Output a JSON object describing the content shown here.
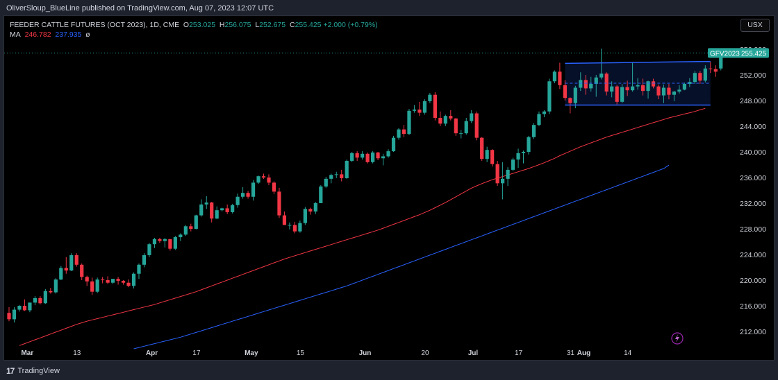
{
  "header": {
    "text": "OliverSloup_BlueLine published on TradingView.com, Aug 07, 2023 12:07 UTC"
  },
  "legend": {
    "symbol": "FEEDER CATTLE FUTURES (OCT 2023), 1D, CME",
    "o_label": "O",
    "o_value": "253.025",
    "h_label": "H",
    "h_value": "256.075",
    "l_label": "L",
    "l_value": "252.675",
    "c_label": "C",
    "c_value": "255.425",
    "change": "+2.000 (+0.79%)",
    "ma_label": "MA",
    "ma1_value": "246.782",
    "ma2_value": "237.935",
    "ma_extra": "ø"
  },
  "currency_button": "USX",
  "footer": {
    "brand": "TradingView"
  },
  "price_tag": {
    "symbol": "GFV2023",
    "price": "255.425"
  },
  "colors": {
    "up": "#26a69a",
    "down": "#f23645",
    "ma1": "#f23645",
    "ma2": "#2962ff",
    "channel": "#2962ff",
    "background": "#000000",
    "axis_text": "#d1d4dc"
  },
  "chart_data": {
    "type": "candlestick",
    "title": "FEEDER CATTLE FUTURES (OCT 2023), 1D, CME",
    "ylim": [
      208,
      257.5
    ],
    "y_ticks": [
      212,
      216,
      220,
      224,
      228,
      232,
      236,
      240,
      244,
      248,
      252,
      256
    ],
    "y_tick_labels": [
      "212.000",
      "216.000",
      "220.000",
      "224.000",
      "228.000",
      "232.000",
      "236.000",
      "240.000",
      "244.000",
      "248.000",
      "252.000",
      "256.000"
    ],
    "x_ticks": [
      {
        "index": 3,
        "label": "Mar"
      },
      {
        "index": 13,
        "label": "13"
      },
      {
        "index": 27,
        "label": "Apr"
      },
      {
        "index": 36,
        "label": "17"
      },
      {
        "index": 46,
        "label": "May"
      },
      {
        "index": 56,
        "label": "15"
      },
      {
        "index": 68,
        "label": "Jun"
      },
      {
        "index": 80,
        "label": "20"
      },
      {
        "index": 89,
        "label": "Jul"
      },
      {
        "index": 98,
        "label": "17"
      },
      {
        "index": 108,
        "label": "31"
      },
      {
        "index": 110,
        "label": "Aug"
      },
      {
        "index": 119,
        "label": "14"
      }
    ],
    "candles": [
      [
        214.9,
        215.8,
        213.6,
        213.9
      ],
      [
        213.9,
        215.8,
        213.4,
        215.4
      ],
      [
        215.4,
        216.1,
        215.1,
        216.0
      ],
      [
        216.0,
        217.0,
        215.2,
        215.3
      ],
      [
        215.3,
        216.5,
        215.0,
        216.5
      ],
      [
        216.5,
        217.5,
        216.1,
        217.2
      ],
      [
        217.2,
        217.5,
        216.2,
        216.4
      ],
      [
        216.4,
        218.6,
        216.3,
        218.3
      ],
      [
        218.3,
        218.8,
        217.9,
        218.1
      ],
      [
        218.1,
        220.3,
        217.9,
        220.1
      ],
      [
        220.1,
        222.2,
        220.0,
        221.9
      ],
      [
        221.9,
        223.6,
        221.0,
        221.5
      ],
      [
        221.5,
        224.2,
        221.4,
        223.9
      ],
      [
        223.9,
        224.2,
        222.1,
        222.4
      ],
      [
        222.4,
        222.6,
        220.0,
        220.5
      ],
      [
        220.5,
        220.7,
        219.1,
        219.8
      ],
      [
        219.8,
        220.4,
        217.7,
        218.2
      ],
      [
        218.2,
        220.4,
        218.0,
        220.1
      ],
      [
        220.1,
        220.5,
        219.5,
        220.0
      ],
      [
        220.0,
        220.6,
        219.4,
        219.6
      ],
      [
        219.6,
        220.2,
        219.4,
        220.2
      ],
      [
        220.2,
        220.5,
        219.3,
        219.9
      ],
      [
        219.9,
        220.0,
        219.3,
        219.6
      ],
      [
        219.6,
        220.1,
        218.9,
        219.1
      ],
      [
        219.1,
        221.2,
        218.7,
        221.0
      ],
      [
        221.0,
        222.6,
        220.2,
        222.4
      ],
      [
        222.4,
        224.2,
        222.0,
        223.9
      ],
      [
        223.9,
        225.8,
        223.6,
        225.6
      ],
      [
        225.6,
        226.6,
        225.0,
        226.4
      ],
      [
        226.4,
        226.6,
        225.8,
        226.1
      ],
      [
        226.1,
        226.6,
        225.1,
        226.4
      ],
      [
        226.4,
        226.4,
        224.6,
        224.9
      ],
      [
        224.9,
        226.9,
        224.7,
        226.7
      ],
      [
        226.7,
        227.3,
        226.1,
        227.1
      ],
      [
        227.1,
        228.6,
        226.9,
        228.4
      ],
      [
        228.4,
        228.8,
        227.6,
        228.0
      ],
      [
        228.0,
        230.2,
        227.9,
        230.1
      ],
      [
        230.1,
        232.6,
        229.9,
        231.8
      ],
      [
        231.8,
        233.1,
        231.1,
        232.1
      ],
      [
        232.1,
        232.2,
        229.0,
        229.6
      ],
      [
        229.6,
        231.5,
        229.5,
        230.9
      ],
      [
        230.9,
        231.3,
        230.7,
        231.2
      ],
      [
        231.2,
        231.8,
        230.3,
        230.6
      ],
      [
        230.6,
        231.9,
        230.4,
        231.7
      ],
      [
        231.7,
        233.5,
        231.3,
        233.0
      ],
      [
        233.0,
        234.5,
        232.7,
        233.6
      ],
      [
        233.6,
        233.9,
        232.7,
        233.0
      ],
      [
        233.0,
        235.6,
        232.4,
        235.2
      ],
      [
        235.2,
        236.3,
        235.0,
        236.2
      ],
      [
        236.2,
        236.6,
        235.8,
        236.0
      ],
      [
        236.0,
        236.5,
        234.8,
        235.2
      ],
      [
        235.2,
        235.4,
        233.4,
        233.8
      ],
      [
        233.8,
        234.4,
        229.7,
        230.1
      ],
      [
        230.1,
        230.7,
        228.6,
        228.6
      ],
      [
        228.6,
        229.0,
        227.9,
        228.6
      ],
      [
        228.6,
        229.1,
        227.3,
        227.6
      ],
      [
        227.6,
        229.3,
        227.4,
        228.9
      ],
      [
        228.9,
        231.4,
        228.6,
        231.1
      ],
      [
        231.1,
        231.3,
        230.2,
        230.7
      ],
      [
        230.7,
        232.2,
        230.3,
        232.0
      ],
      [
        232.0,
        234.8,
        232.0,
        234.6
      ],
      [
        234.6,
        236.1,
        234.4,
        235.8
      ],
      [
        235.8,
        236.6,
        235.1,
        236.4
      ],
      [
        236.4,
        236.9,
        235.9,
        236.5
      ],
      [
        236.5,
        237.2,
        235.4,
        235.9
      ],
      [
        235.9,
        238.8,
        235.8,
        238.6
      ],
      [
        238.6,
        240.0,
        238.4,
        239.8
      ],
      [
        239.8,
        240.1,
        238.6,
        239.1
      ],
      [
        239.1,
        240.1,
        238.8,
        239.7
      ],
      [
        239.7,
        239.9,
        238.2,
        238.4
      ],
      [
        238.4,
        240.1,
        238.2,
        239.9
      ],
      [
        239.9,
        240.0,
        238.7,
        239.0
      ],
      [
        239.0,
        239.7,
        237.9,
        239.3
      ],
      [
        239.3,
        240.4,
        239.1,
        240.1
      ],
      [
        240.1,
        242.5,
        240.0,
        242.2
      ],
      [
        242.2,
        243.7,
        241.9,
        243.5
      ],
      [
        243.5,
        244.2,
        242.3,
        242.8
      ],
      [
        242.8,
        246.7,
        242.6,
        246.4
      ],
      [
        246.4,
        247.3,
        246.1,
        246.6
      ],
      [
        246.6,
        247.8,
        245.6,
        246.1
      ],
      [
        246.1,
        248.2,
        245.8,
        247.9
      ],
      [
        247.9,
        249.2,
        247.6,
        248.9
      ],
      [
        248.9,
        249.3,
        244.9,
        245.3
      ],
      [
        245.3,
        246.3,
        244.0,
        244.4
      ],
      [
        244.4,
        245.8,
        244.0,
        245.6
      ],
      [
        245.6,
        246.5,
        244.9,
        245.2
      ],
      [
        245.2,
        245.3,
        242.5,
        242.9
      ],
      [
        242.9,
        243.4,
        242.1,
        242.9
      ],
      [
        242.9,
        245.3,
        242.7,
        244.8
      ],
      [
        244.8,
        246.5,
        244.5,
        246.0
      ],
      [
        246.0,
        246.3,
        241.8,
        242.2
      ],
      [
        242.2,
        242.3,
        238.6,
        238.9
      ],
      [
        238.9,
        240.8,
        238.4,
        240.3
      ],
      [
        240.3,
        240.4,
        237.7,
        238.1
      ],
      [
        238.1,
        238.6,
        234.7,
        235.1
      ],
      [
        235.1,
        238.4,
        232.6,
        235.8
      ],
      [
        235.8,
        237.6,
        234.7,
        237.2
      ],
      [
        237.2,
        239.1,
        237.0,
        238.8
      ],
      [
        238.8,
        240.5,
        237.5,
        239.8
      ],
      [
        239.8,
        240.2,
        238.2,
        240.0
      ],
      [
        240.0,
        242.5,
        239.6,
        242.3
      ],
      [
        242.3,
        244.5,
        242.0,
        244.2
      ],
      [
        244.2,
        246.3,
        244.0,
        245.9
      ],
      [
        245.9,
        246.5,
        245.4,
        246.3
      ],
      [
        246.3,
        251.4,
        245.9,
        251.0
      ],
      [
        251.0,
        252.7,
        250.7,
        252.5
      ],
      [
        252.5,
        253.9,
        249.8,
        250.4
      ],
      [
        250.4,
        251.2,
        248.0,
        248.4
      ],
      [
        248.4,
        248.5,
        246.0,
        247.6
      ],
      [
        247.6,
        250.3,
        246.8,
        250.0
      ],
      [
        250.0,
        252.4,
        249.5,
        251.2
      ],
      [
        251.2,
        252.0,
        248.9,
        249.9
      ],
      [
        249.9,
        251.7,
        249.4,
        250.6
      ],
      [
        250.6,
        252.0,
        248.6,
        251.6
      ],
      [
        251.6,
        256.1,
        251.3,
        252.2
      ],
      [
        252.2,
        252.4,
        248.8,
        249.4
      ],
      [
        249.4,
        251.0,
        248.5,
        250.2
      ],
      [
        250.2,
        250.4,
        247.4,
        247.8
      ],
      [
        247.8,
        250.6,
        247.6,
        250.1
      ],
      [
        250.1,
        251.1,
        248.7,
        249.6
      ],
      [
        249.6,
        254.0,
        249.4,
        250.2
      ],
      [
        250.2,
        251.5,
        249.7,
        250.4
      ],
      [
        250.4,
        251.4,
        248.8,
        249.5
      ],
      [
        249.5,
        251.1,
        248.3,
        251.0
      ],
      [
        251.0,
        251.4,
        249.9,
        250.2
      ],
      [
        250.2,
        250.5,
        248.2,
        248.8
      ],
      [
        248.8,
        250.5,
        247.6,
        250.0
      ],
      [
        250.0,
        250.6,
        248.2,
        248.9
      ],
      [
        248.9,
        249.5,
        247.9,
        249.4
      ],
      [
        249.4,
        250.4,
        249.1,
        249.7
      ],
      [
        249.7,
        250.8,
        249.6,
        250.6
      ],
      [
        250.6,
        251.5,
        250.1,
        250.9
      ],
      [
        250.9,
        252.6,
        250.6,
        252.3
      ],
      [
        252.3,
        252.6,
        250.6,
        251.1
      ],
      [
        251.1,
        253.5,
        250.8,
        253.0
      ],
      [
        253.0,
        254.0,
        252.3,
        252.9
      ],
      [
        252.9,
        253.5,
        251.7,
        252.5
      ],
      [
        253.0,
        256.1,
        252.7,
        255.4
      ]
    ],
    "series": [
      {
        "name": "MA",
        "color": "#f23645",
        "start_index": 2,
        "values": [
          209.8,
          210.1,
          210.4,
          210.7,
          211.0,
          211.3,
          211.6,
          211.9,
          212.2,
          212.5,
          212.8,
          213.1,
          213.35,
          213.6,
          213.8,
          214.0,
          214.2,
          214.4,
          214.6,
          214.8,
          215.0,
          215.2,
          215.4,
          215.6,
          215.8,
          216.0,
          216.2,
          216.45,
          216.7,
          216.95,
          217.2,
          217.45,
          217.7,
          217.95,
          218.2,
          218.5,
          218.8,
          219.1,
          219.4,
          219.7,
          220.0,
          220.3,
          220.6,
          220.9,
          221.2,
          221.5,
          221.8,
          222.1,
          222.4,
          222.7,
          223.0,
          223.3,
          223.55,
          223.8,
          224.05,
          224.3,
          224.55,
          224.8,
          225.05,
          225.3,
          225.55,
          225.8,
          226.05,
          226.3,
          226.55,
          226.8,
          227.05,
          227.3,
          227.55,
          227.8,
          228.1,
          228.4,
          228.7,
          229.0,
          229.3,
          229.6,
          229.9,
          230.2,
          230.55,
          230.9,
          231.3,
          231.7,
          232.1,
          232.55,
          233.0,
          233.45,
          233.9,
          234.35,
          234.7,
          235.05,
          235.35,
          235.65,
          235.9,
          236.15,
          236.4,
          236.65,
          236.9,
          237.15,
          237.4,
          237.7,
          238.0,
          238.3,
          238.65,
          239.0,
          239.4,
          239.75,
          240.1,
          240.45,
          240.8,
          241.1,
          241.4,
          241.7,
          242.0,
          242.3,
          242.55,
          242.8,
          243.05,
          243.3,
          243.55,
          243.8,
          244.05,
          244.3,
          244.55,
          244.8,
          245.05,
          245.3,
          245.5,
          245.7,
          245.9,
          246.1,
          246.3,
          246.55,
          246.78
        ]
      },
      {
        "name": "MA",
        "color": "#2962ff",
        "start_index": 24,
        "values": [
          209.3,
          209.5,
          209.7,
          209.9,
          210.1,
          210.3,
          210.5,
          210.7,
          210.9,
          211.1,
          211.35,
          211.6,
          211.85,
          212.1,
          212.35,
          212.6,
          212.85,
          213.1,
          213.35,
          213.6,
          213.85,
          214.1,
          214.35,
          214.6,
          214.85,
          215.1,
          215.35,
          215.6,
          215.85,
          216.1,
          216.35,
          216.6,
          216.85,
          217.1,
          217.35,
          217.6,
          217.85,
          218.1,
          218.35,
          218.6,
          218.85,
          219.1,
          219.4,
          219.7,
          220.0,
          220.3,
          220.6,
          220.9,
          221.2,
          221.5,
          221.8,
          222.1,
          222.4,
          222.7,
          223.0,
          223.3,
          223.6,
          223.9,
          224.2,
          224.5,
          224.8,
          225.1,
          225.4,
          225.7,
          226.0,
          226.3,
          226.6,
          226.9,
          227.2,
          227.5,
          227.8,
          228.1,
          228.4,
          228.7,
          229.0,
          229.3,
          229.6,
          229.9,
          230.2,
          230.5,
          230.8,
          231.1,
          231.4,
          231.7,
          232.0,
          232.3,
          232.6,
          232.9,
          233.2,
          233.5,
          233.8,
          234.1,
          234.4,
          234.7,
          235.0,
          235.3,
          235.6,
          235.9,
          236.2,
          236.5,
          236.8,
          237.1,
          237.4,
          237.94
        ]
      }
    ],
    "annotations": {
      "channel_top": {
        "from_index": 107,
        "to_index": 135,
        "from_price": 253.8,
        "to_price": 254.1
      },
      "channel_bottom": {
        "from_index": 107,
        "to_index": 135,
        "from_price": 247.3,
        "to_price": 247.3
      },
      "channel_mid": {
        "from_index": 107,
        "to_index": 135,
        "price": 250.7
      },
      "last_price_line": 255.425
    },
    "grid": false,
    "legend_position": "top-left"
  }
}
